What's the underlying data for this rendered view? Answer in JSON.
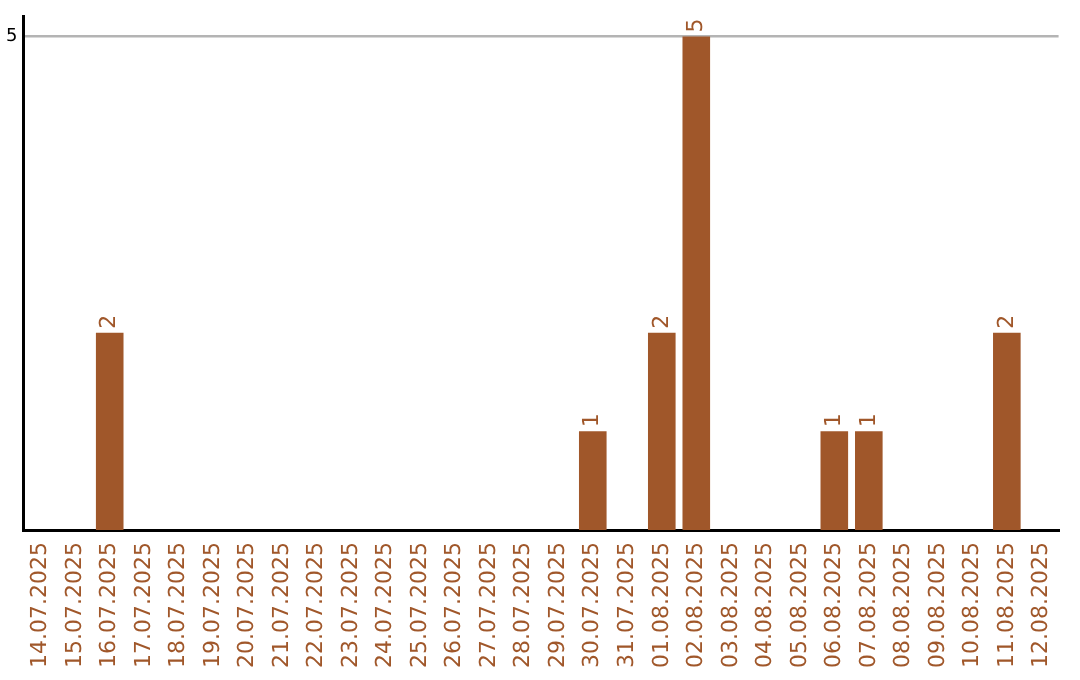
{
  "chart_data": {
    "type": "bar",
    "categories": [
      "14.07.2025",
      "15.07.2025",
      "16.07.2025",
      "17.07.2025",
      "18.07.2025",
      "19.07.2025",
      "20.07.2025",
      "21.07.2025",
      "22.07.2025",
      "23.07.2025",
      "24.07.2025",
      "25.07.2025",
      "26.07.2025",
      "27.07.2025",
      "28.07.2025",
      "29.07.2025",
      "30.07.2025",
      "31.07.2025",
      "01.08.2025",
      "02.08.2025",
      "03.08.2025",
      "04.08.2025",
      "05.08.2025",
      "06.08.2025",
      "07.08.2025",
      "08.08.2025",
      "09.08.2025",
      "10.08.2025",
      "11.08.2025",
      "12.08.2025"
    ],
    "values": [
      0,
      0,
      2,
      0,
      0,
      0,
      0,
      0,
      0,
      0,
      0,
      0,
      0,
      0,
      0,
      0,
      1,
      0,
      2,
      5,
      0,
      0,
      0,
      1,
      1,
      0,
      0,
      0,
      2,
      0
    ],
    "value_labels": [
      null,
      null,
      "2",
      null,
      null,
      null,
      null,
      null,
      null,
      null,
      null,
      null,
      null,
      null,
      null,
      null,
      "1",
      null,
      "2",
      "5",
      null,
      null,
      null,
      "1",
      "1",
      null,
      null,
      null,
      "2",
      null
    ],
    "color": "#a0572a",
    "ylim": [
      0,
      5.2
    ],
    "yticks": [
      5
    ],
    "grid": "y",
    "legend": false
  }
}
